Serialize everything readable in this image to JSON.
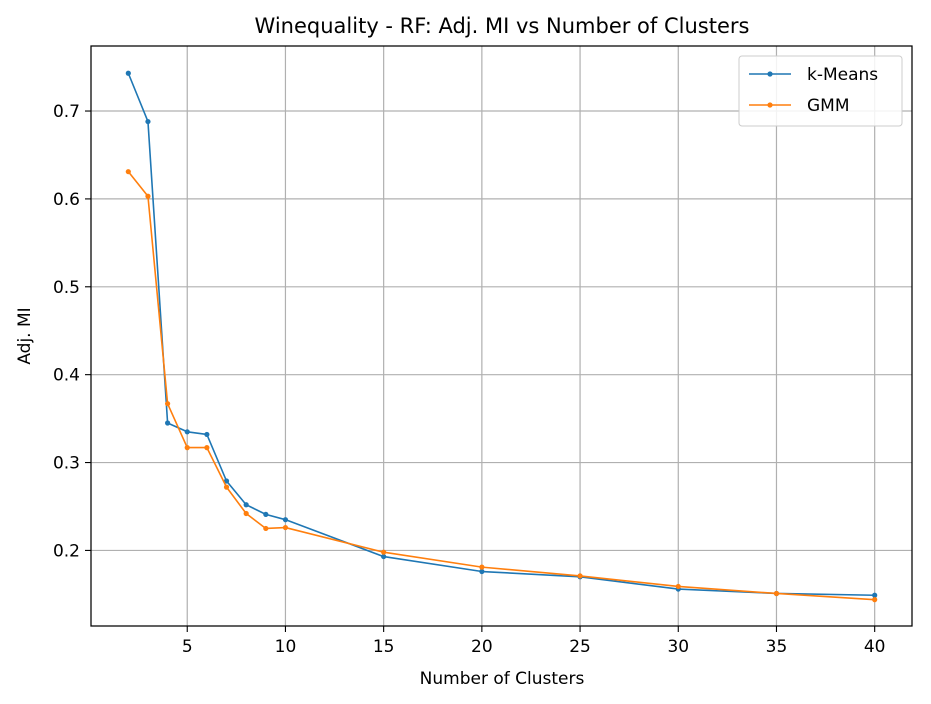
{
  "chart_data": {
    "type": "line",
    "title": "Winequality - RF: Adj. MI vs Number of Clusters",
    "xlabel": "Number of Clusters",
    "ylabel": "Adj. MI",
    "xlim": [
      0.1,
      41.9
    ],
    "ylim": [
      0.114,
      0.774
    ],
    "xticks": [
      5,
      10,
      15,
      20,
      25,
      30,
      35,
      40
    ],
    "yticks": [
      0.2,
      0.3,
      0.4,
      0.5,
      0.6,
      0.7
    ],
    "xtick_labels": [
      "5",
      "10",
      "15",
      "20",
      "25",
      "30",
      "35",
      "40"
    ],
    "ytick_labels": [
      "0.2",
      "0.3",
      "0.4",
      "0.5",
      "0.6",
      "0.7"
    ],
    "grid": true,
    "legend_position": "upper right",
    "x": [
      2,
      3,
      4,
      5,
      6,
      7,
      8,
      9,
      10,
      15,
      20,
      25,
      30,
      35,
      40
    ],
    "series": [
      {
        "name": "k-Means",
        "color": "#1f77b4",
        "values": [
          0.743,
          0.688,
          0.345,
          0.335,
          0.332,
          0.279,
          0.252,
          0.241,
          0.235,
          0.193,
          0.176,
          0.17,
          0.156,
          0.151,
          0.149
        ]
      },
      {
        "name": "GMM",
        "color": "#ff7f0e",
        "values": [
          0.631,
          0.603,
          0.367,
          0.317,
          0.317,
          0.272,
          0.242,
          0.225,
          0.226,
          0.198,
          0.181,
          0.171,
          0.159,
          0.151,
          0.144
        ]
      }
    ]
  }
}
